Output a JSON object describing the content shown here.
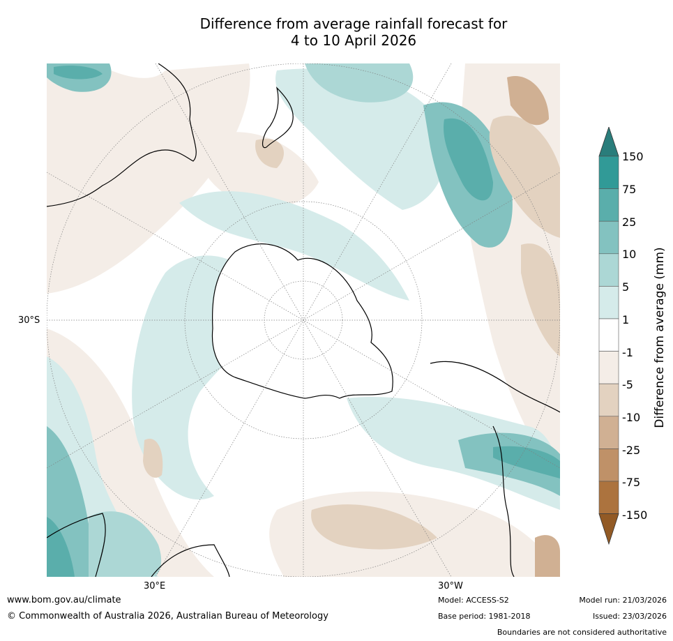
{
  "title": {
    "line1": "Difference from average rainfall forecast for",
    "line2": "4 to 10 April 2026"
  },
  "map": {
    "projection": "south polar stereographic",
    "axis_labels": {
      "left": "30°S",
      "bottom_left": "30°E",
      "bottom_right": "30°W"
    },
    "land_outline_color": "#000000",
    "graticule_color": "#7f7f7f"
  },
  "colorbar": {
    "label": "Difference from average (mm)",
    "ticks": [
      "150",
      "75",
      "25",
      "10",
      "5",
      "1",
      "-1",
      "-5",
      "-10",
      "-25",
      "-75",
      "-150"
    ],
    "colors_top_to_bottom": [
      "#2a7d7b",
      "#319a97",
      "#5aaeab",
      "#83c2c0",
      "#acd7d5",
      "#d5ebea",
      "#ffffff",
      "#f4ede7",
      "#e3d2c0",
      "#d0b093",
      "#bf9168",
      "#ac733e",
      "#925a25"
    ]
  },
  "footer": {
    "url": "www.bom.gov.au/climate",
    "copyright": "© Commonwealth of Australia 2026, Australian Bureau of Meteorology",
    "model": "Model: ACCESS-S2",
    "base_period": "Base period: 1981-2018",
    "model_run": "Model run: 21/03/2026",
    "issued": "Issued: 23/03/2026",
    "disclaimer": "Boundaries are not considered authoritative"
  }
}
